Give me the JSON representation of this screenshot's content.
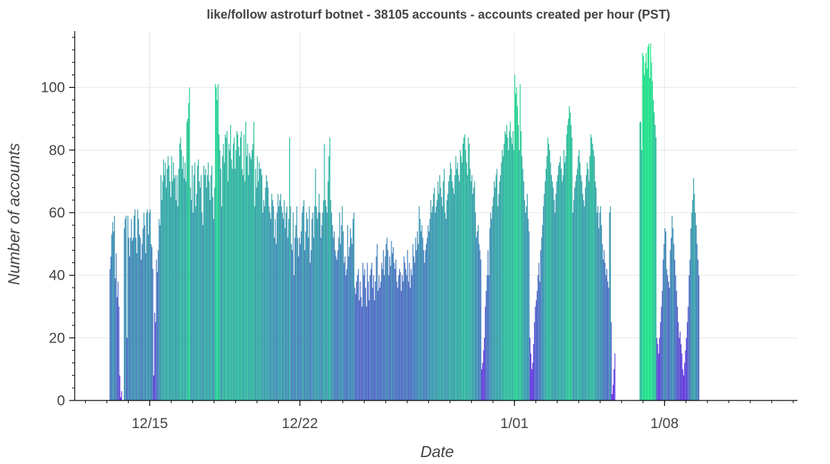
{
  "chart_data": {
    "type": "bar",
    "title": "like/follow astroturf botnet - 38105 accounts - accounts created per hour (PST)",
    "xlabel": "Date",
    "ylabel": "Number of accounts",
    "x_ticks": [
      "12/15",
      "12/22",
      "1/01",
      "1/08"
    ],
    "y_ticks": [
      0,
      20,
      40,
      60,
      80,
      100
    ],
    "ylim": [
      0,
      118
    ],
    "xlim_days_from_12_15": [
      -3.5,
      30.2
    ],
    "grid": true,
    "color_scale": {
      "low": "#6a1de8",
      "mid": "#3a8fb2",
      "high": "#18e683"
    },
    "series": [
      {
        "x_unit": "hour",
        "x_start": "12/13 03:00",
        "values": [
          42,
          46,
          53,
          57,
          54,
          59,
          39,
          47,
          33,
          38,
          30,
          8,
          1,
          3,
          0,
          0,
          55,
          58,
          59,
          20,
          59,
          52,
          46,
          52,
          58,
          51,
          52,
          59,
          61,
          52,
          47,
          61,
          58,
          53,
          52,
          45,
          50,
          55,
          60,
          56,
          47,
          60,
          61,
          53,
          60,
          61,
          50,
          49,
          42,
          8,
          28,
          25,
          45,
          41,
          48,
          58,
          56,
          72,
          64,
          70,
          77,
          72,
          76,
          68,
          74,
          78,
          75,
          70,
          65,
          78,
          70,
          76,
          71,
          72,
          64,
          72,
          62,
          74,
          82,
          84,
          80,
          74,
          78,
          71,
          76,
          70,
          89,
          90,
          95,
          100,
          68,
          64,
          75,
          60,
          72,
          76,
          62,
          66,
          75,
          77,
          70,
          68,
          72,
          60,
          56,
          75,
          72,
          74,
          68,
          72,
          76,
          70,
          64,
          72,
          75,
          65,
          58,
          68,
          101,
          100,
          96,
          101,
          85,
          80,
          74,
          62,
          78,
          82,
          76,
          85,
          84,
          86,
          70,
          82,
          80,
          88,
          77,
          74,
          82,
          84,
          74,
          80,
          86,
          85,
          81,
          78,
          84,
          86,
          74,
          72,
          85,
          70,
          89,
          78,
          82,
          72,
          79,
          78,
          77,
          80,
          82,
          89,
          62,
          74,
          68,
          78,
          70,
          76,
          74,
          74,
          72,
          60,
          64,
          62,
          68,
          72,
          70,
          68,
          62,
          60,
          58,
          66,
          64,
          62,
          52,
          58,
          50,
          60,
          66,
          62,
          64,
          66,
          62,
          60,
          58,
          64,
          55,
          60,
          62,
          52,
          58,
          84,
          62,
          50,
          48,
          60,
          40,
          52,
          56,
          62,
          52,
          46,
          52,
          50,
          54,
          60,
          62,
          64,
          48,
          54,
          60,
          58,
          52,
          62,
          44,
          48,
          58,
          60,
          52,
          62,
          74,
          62,
          58,
          60,
          66,
          60,
          52,
          56,
          60,
          64,
          82,
          64,
          62,
          60,
          70,
          78,
          84,
          64,
          60,
          56,
          52,
          54,
          48,
          46,
          45,
          48,
          52,
          60,
          50,
          56,
          62,
          54,
          44,
          46,
          40,
          42,
          56,
          46,
          49,
          55,
          52,
          50,
          58,
          60,
          36,
          34,
          38,
          40,
          42,
          32,
          38,
          33,
          30,
          44,
          40,
          42,
          36,
          30,
          44,
          38,
          32,
          40,
          42,
          44,
          36,
          40,
          32,
          38,
          46,
          50,
          35,
          40,
          36,
          38,
          44,
          42,
          48,
          40,
          46,
          50,
          52,
          48,
          40,
          46,
          43,
          51,
          47,
          49,
          44,
          42,
          45,
          38,
          36,
          40,
          42,
          41,
          35,
          40,
          38,
          46,
          44,
          42,
          40,
          48,
          38,
          44,
          36,
          42,
          40,
          50,
          46,
          44,
          52,
          48,
          54,
          50,
          62,
          58,
          54,
          56,
          52,
          48,
          44,
          48,
          50,
          52,
          56,
          54,
          58,
          64,
          60,
          62,
          66,
          68,
          60,
          62,
          64,
          70,
          66,
          72,
          68,
          65,
          62,
          70,
          74,
          60,
          58,
          64,
          66,
          70,
          72,
          76,
          74,
          70,
          68,
          66,
          72,
          78,
          74,
          76,
          72,
          70,
          80,
          78,
          76,
          82,
          84,
          85,
          80,
          76,
          72,
          84,
          82,
          74,
          70,
          72,
          66,
          68,
          70,
          60,
          52,
          54,
          56,
          50,
          48,
          45,
          10,
          12,
          16,
          20,
          30,
          35,
          40,
          48,
          40,
          55,
          60,
          58,
          62,
          65,
          70,
          68,
          72,
          74,
          62,
          66,
          70,
          72,
          76,
          80,
          78,
          82,
          86,
          85,
          88,
          84,
          80,
          86,
          89,
          84,
          82,
          86,
          80,
          104,
          98,
          100,
          94,
          88,
          80,
          101,
          86,
          78,
          74,
          70,
          64,
          60,
          62,
          66,
          58,
          54,
          20,
          15,
          10,
          12,
          18,
          25,
          30,
          32,
          35,
          40,
          44,
          38,
          48,
          52,
          56,
          62,
          66,
          70,
          74,
          78,
          84,
          82,
          80,
          76,
          72,
          70,
          68,
          64,
          60,
          66,
          70,
          72,
          75,
          76,
          78,
          74,
          70,
          72,
          80,
          76,
          78,
          85,
          88,
          90,
          94,
          92,
          88,
          84,
          60,
          64,
          68,
          70,
          72,
          74,
          78,
          80,
          76,
          72,
          70,
          66,
          64,
          62,
          68,
          72,
          76,
          74,
          70,
          78,
          85,
          84,
          82,
          80,
          78,
          70,
          68,
          60,
          62,
          55,
          60,
          62,
          56,
          50,
          45,
          48,
          44,
          40,
          42,
          38,
          36,
          60,
          62,
          25,
          2,
          5,
          10,
          15,
          0,
          0,
          0,
          0,
          0,
          0,
          0,
          0,
          0,
          0,
          0,
          0,
          0,
          0,
          0,
          0,
          0,
          0,
          0,
          0,
          0,
          0,
          0,
          0,
          0,
          0,
          0,
          89,
          89,
          80,
          111,
          110,
          104,
          108,
          111,
          106,
          113,
          114,
          103,
          114,
          108,
          102,
          96,
          92,
          88,
          84,
          20,
          18,
          15,
          20,
          25,
          30,
          35,
          45,
          50,
          55,
          54,
          42,
          40,
          38,
          36,
          48,
          52,
          59,
          55,
          50,
          45,
          40,
          35,
          30,
          25,
          20,
          22,
          18,
          15,
          10,
          8,
          12,
          16,
          20,
          25,
          30,
          40,
          45,
          55,
          60,
          64,
          71,
          66,
          60,
          56,
          50,
          45,
          40
        ]
      }
    ]
  }
}
